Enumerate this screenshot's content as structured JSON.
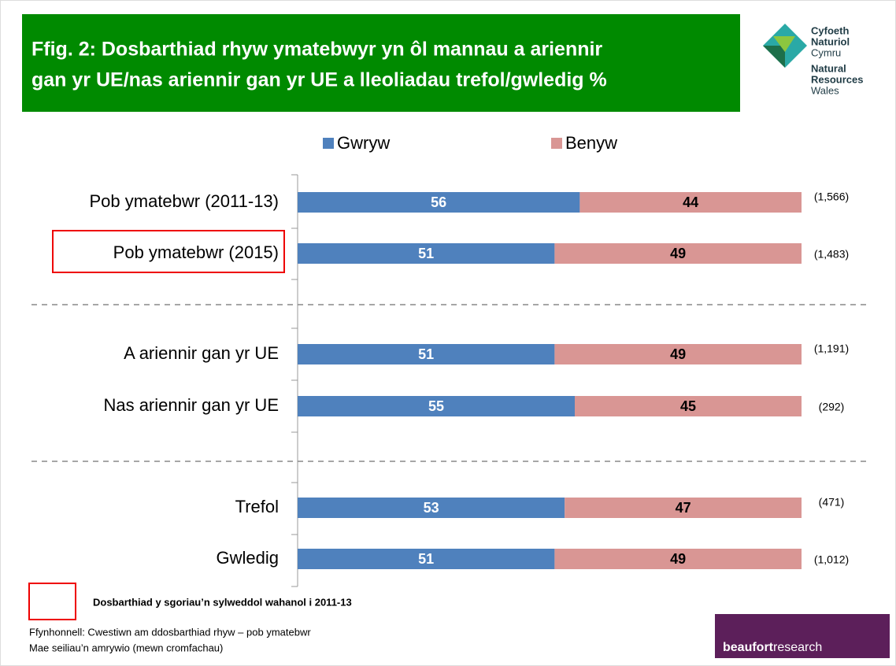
{
  "chart_data": {
    "type": "stacked_bar_horizontal",
    "title": "Ffig. 2: Dosbarthiad rhyw ymatebwyr yn ôl mannau a ariennir",
    "title_line2": "gan yr UE/nas ariennir gan yr UE a lleoliadau trefol/gwledig %",
    "categories": [
      "Pob ymatebwr (2011-13)",
      "Pob ymatebwr (2015)",
      "A ariennir gan yr UE",
      "Nas ariennir gan yr UE",
      "Trefol",
      "Gwledig"
    ],
    "series": [
      {
        "name": "Gwryw",
        "color": "#4f81bd",
        "label_color": "#ffffff",
        "values": [
          56,
          51,
          51,
          55,
          53,
          51
        ]
      },
      {
        "name": "Benyw",
        "color": "#d99694",
        "label_color": "#000000",
        "values": [
          44,
          49,
          49,
          45,
          47,
          49
        ]
      }
    ],
    "bases": [
      "(1,566)",
      "(1,483)",
      "(1,191)",
      "(292)",
      "(471)",
      "(1,012)"
    ],
    "significant": [
      false,
      true,
      false,
      false,
      false,
      false
    ],
    "xlim": [
      0,
      100
    ],
    "legend": "top",
    "significance_note": "Dosbarthiad y sgoriau’n sylweddol wahanol i 2011-13",
    "source": "Ffynhonnell: Cwestiwn am ddosbarthiad rhyw – pob ymatebwr",
    "base_note": "Mae seiliau’n amrywio (mewn cromfachau)"
  },
  "logo": {
    "lines": [
      "Cyfoeth",
      "Naturiol",
      "Cymru",
      "Natural",
      "Resources",
      "Wales"
    ]
  },
  "footer_logo": {
    "bold": "beaufort",
    "rest": "research"
  }
}
